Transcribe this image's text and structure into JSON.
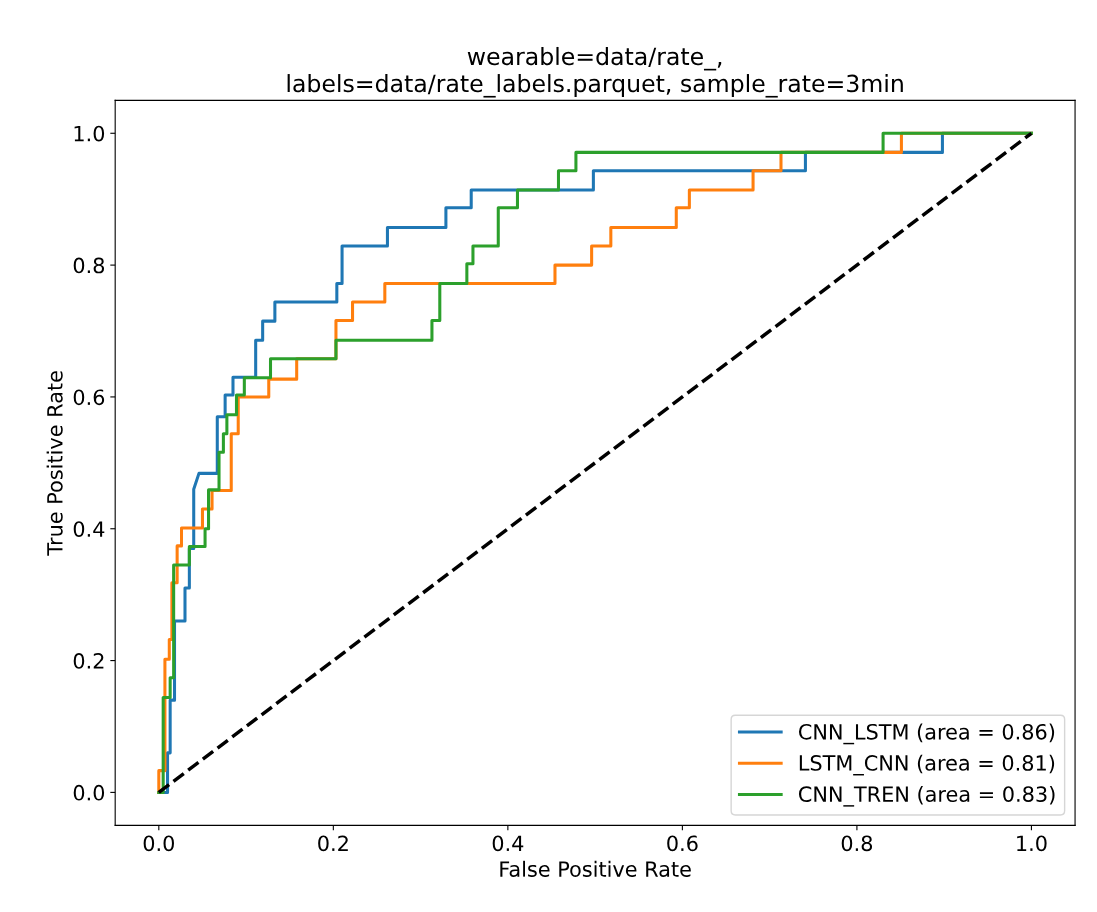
{
  "chart_data": {
    "type": "line",
    "title": "wearable=data/rate_,\nlabels=data/rate_labels.parquet, sample_rate=3min",
    "xlabel": "False Positive Rate",
    "ylabel": "True Positive Rate",
    "xlim": [
      -0.05,
      1.05
    ],
    "ylim": [
      -0.05,
      1.05
    ],
    "xticks": [
      {
        "value": 0,
        "label": "0.0"
      },
      {
        "value": 0.2,
        "label": "0.2"
      },
      {
        "value": 0.4,
        "label": "0.4"
      },
      {
        "value": 0.6,
        "label": "0.6"
      },
      {
        "value": 0.8,
        "label": "0.8"
      },
      {
        "value": 1,
        "label": "1.0"
      }
    ],
    "yticks": [
      {
        "value": 0,
        "label": "0.0"
      },
      {
        "value": 0.2,
        "label": "0.2"
      },
      {
        "value": 0.4,
        "label": "0.4"
      },
      {
        "value": 0.6,
        "label": "0.6"
      },
      {
        "value": 0.8,
        "label": "0.8"
      },
      {
        "value": 1,
        "label": "1.0"
      }
    ],
    "grid": false,
    "legend": "bottom right",
    "marker": "none",
    "series": [
      {
        "name": "CNN_LSTM (area = 0.86)",
        "color": "#1f77b4",
        "line_style": "solid",
        "x": [
          0,
          0.01,
          0.01,
          0.013,
          0.013,
          0.018,
          0.018,
          0.03,
          0.03,
          0.035,
          0.035,
          0.04,
          0.04,
          0.046,
          0.067,
          0.067,
          0.076,
          0.076,
          0.085,
          0.085,
          0.111,
          0.111,
          0.119,
          0.119,
          0.133,
          0.133,
          0.204,
          0.204,
          0.21,
          0.21,
          0.262,
          0.262,
          0.329,
          0.329,
          0.358,
          0.358,
          0.498,
          0.498,
          0.741,
          0.741,
          0.898,
          0.898,
          1.0
        ],
        "values": [
          0,
          0,
          0.06,
          0.06,
          0.14,
          0.14,
          0.26,
          0.26,
          0.31,
          0.31,
          0.37,
          0.37,
          0.46,
          0.484,
          0.484,
          0.57,
          0.57,
          0.603,
          0.603,
          0.63,
          0.63,
          0.686,
          0.686,
          0.715,
          0.715,
          0.744,
          0.744,
          0.772,
          0.772,
          0.829,
          0.829,
          0.857,
          0.857,
          0.887,
          0.887,
          0.914,
          0.914,
          0.943,
          0.943,
          0.971,
          0.971,
          1.0,
          1.0
        ]
      },
      {
        "name": "LSTM_CNN (area = 0.81)",
        "color": "#ff7f0e",
        "line_style": "solid",
        "x": [
          0,
          0,
          0.007,
          0.007,
          0.012,
          0.012,
          0.015,
          0.015,
          0.021,
          0.021,
          0.026,
          0.026,
          0.05,
          0.05,
          0.061,
          0.061,
          0.083,
          0.083,
          0.091,
          0.091,
          0.126,
          0.126,
          0.158,
          0.158,
          0.203,
          0.203,
          0.222,
          0.222,
          0.259,
          0.259,
          0.454,
          0.454,
          0.496,
          0.496,
          0.518,
          0.518,
          0.593,
          0.593,
          0.608,
          0.608,
          0.681,
          0.681,
          0.713,
          0.713,
          0.851,
          0.851,
          1.0
        ],
        "values": [
          0,
          0.033,
          0.033,
          0.202,
          0.202,
          0.232,
          0.232,
          0.318,
          0.318,
          0.374,
          0.374,
          0.401,
          0.401,
          0.43,
          0.43,
          0.458,
          0.458,
          0.544,
          0.544,
          0.6,
          0.6,
          0.627,
          0.627,
          0.658,
          0.658,
          0.716,
          0.716,
          0.744,
          0.744,
          0.772,
          0.772,
          0.8,
          0.8,
          0.829,
          0.829,
          0.857,
          0.857,
          0.887,
          0.887,
          0.914,
          0.914,
          0.943,
          0.943,
          0.971,
          0.971,
          1.0,
          1.0
        ]
      },
      {
        "name": "CNN_TREN (area = 0.83)",
        "color": "#2ca02c",
        "line_style": "solid",
        "x": [
          0,
          0.005,
          0.005,
          0.013,
          0.013,
          0.017,
          0.017,
          0.035,
          0.035,
          0.053,
          0.053,
          0.057,
          0.057,
          0.069,
          0.069,
          0.074,
          0.074,
          0.078,
          0.078,
          0.089,
          0.089,
          0.098,
          0.098,
          0.128,
          0.128,
          0.203,
          0.203,
          0.313,
          0.313,
          0.322,
          0.322,
          0.353,
          0.353,
          0.36,
          0.36,
          0.389,
          0.389,
          0.411,
          0.411,
          0.458,
          0.458,
          0.478,
          0.478,
          0.83,
          0.83,
          1.0
        ],
        "values": [
          0,
          0,
          0.144,
          0.144,
          0.174,
          0.174,
          0.345,
          0.345,
          0.373,
          0.373,
          0.4,
          0.4,
          0.459,
          0.459,
          0.516,
          0.516,
          0.544,
          0.544,
          0.573,
          0.573,
          0.603,
          0.603,
          0.629,
          0.629,
          0.658,
          0.658,
          0.686,
          0.686,
          0.716,
          0.716,
          0.772,
          0.772,
          0.802,
          0.802,
          0.829,
          0.829,
          0.887,
          0.887,
          0.914,
          0.914,
          0.943,
          0.943,
          0.971,
          0.971,
          1.0,
          1.0
        ]
      },
      {
        "color": "#000000",
        "line_style": "dashed",
        "x": [
          0,
          1
        ],
        "values": [
          0,
          1
        ]
      }
    ]
  }
}
